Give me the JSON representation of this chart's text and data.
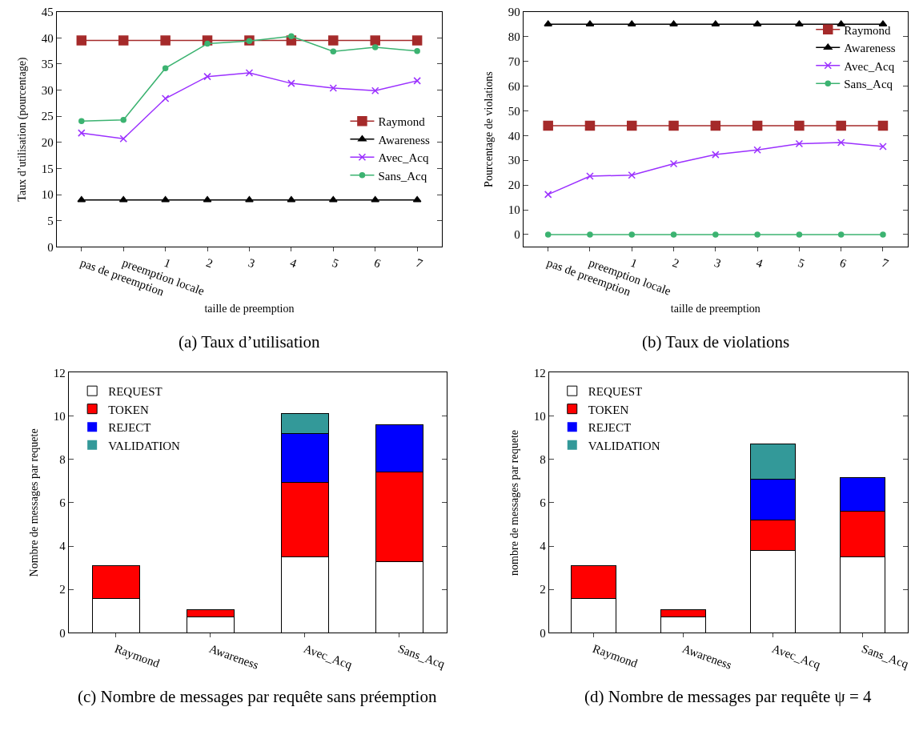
{
  "chart_data": [
    {
      "type": "line",
      "title": "(a) Taux d’utilisation",
      "xlabel": "taille de preemption",
      "ylabel": "Taux d’utilisation (pourcentage)",
      "categories": [
        "pas de preemption",
        "preemption locale",
        "1",
        "2",
        "3",
        "4",
        "5",
        "6",
        "7"
      ],
      "ylim": [
        0,
        45
      ],
      "yticks": [
        0,
        5,
        10,
        15,
        20,
        25,
        30,
        35,
        40,
        45
      ],
      "legend": "right",
      "series": [
        {
          "name": "Raymond",
          "color": "#a52a2a",
          "marker": "square",
          "values": [
            39.5,
            39.5,
            39.5,
            39.5,
            39.5,
            39.5,
            39.5,
            39.5,
            39.5
          ]
        },
        {
          "name": "Awareness",
          "color": "#000000",
          "marker": "triangle",
          "values": [
            9,
            9,
            9,
            9,
            9,
            9,
            9,
            9,
            9
          ]
        },
        {
          "name": "Avec_Acq",
          "color": "#9b30ff",
          "marker": "cross",
          "values": [
            21.8,
            20.7,
            28.4,
            32.6,
            33.3,
            31.3,
            30.4,
            29.9,
            31.8
          ]
        },
        {
          "name": "Sans_Acq",
          "color": "#3cb371",
          "marker": "circle",
          "values": [
            24.1,
            24.3,
            34.2,
            38.9,
            39.4,
            40.3,
            37.4,
            38.2,
            37.5
          ]
        }
      ]
    },
    {
      "type": "line",
      "title": "(b) Taux de violations",
      "xlabel": "taille de preemption",
      "ylabel": "Pourcentage de violations",
      "categories": [
        "pas de preemption",
        "preemption locale",
        "1",
        "2",
        "3",
        "4",
        "5",
        "6",
        "7"
      ],
      "ylim": [
        -5,
        90
      ],
      "yticks": [
        0,
        10,
        20,
        30,
        40,
        50,
        60,
        70,
        80,
        90
      ],
      "legend": "top right",
      "series": [
        {
          "name": "Raymond",
          "color": "#a52a2a",
          "marker": "square",
          "values": [
            44,
            44,
            44,
            44,
            44,
            44,
            44,
            44,
            44
          ]
        },
        {
          "name": "Awareness",
          "color": "#000000",
          "marker": "triangle",
          "values": [
            85,
            85,
            85,
            85,
            85,
            85,
            85,
            85,
            85
          ]
        },
        {
          "name": "Avec_Acq",
          "color": "#9b30ff",
          "marker": "cross",
          "values": [
            16.2,
            23.6,
            24,
            28.6,
            32.3,
            34.2,
            36.7,
            37.2,
            35.6
          ]
        },
        {
          "name": "Sans_Acq",
          "color": "#3cb371",
          "marker": "circle",
          "values": [
            0,
            0,
            0,
            0,
            0,
            0,
            0,
            0,
            0
          ]
        }
      ]
    },
    {
      "type": "bar",
      "stacked": true,
      "title": "(c) Nombre de messages par requête sans préemption",
      "ylabel": "Nombre de messages par requete",
      "categories": [
        "Raymond",
        "Awareness",
        "Avec_Acq",
        "Sans_Acq"
      ],
      "ylim": [
        0,
        12
      ],
      "yticks": [
        0,
        2,
        4,
        6,
        8,
        10,
        12
      ],
      "legend": "top left",
      "series": [
        {
          "name": "REQUEST",
          "color": "#ffffff",
          "values": [
            1.6,
            0.75,
            3.5,
            3.3
          ]
        },
        {
          "name": "TOKEN",
          "color": "#ff0000",
          "values": [
            1.5,
            0.3,
            3.45,
            4.1
          ]
        },
        {
          "name": "REJECT",
          "color": "#0000ff",
          "values": [
            0,
            0,
            2.25,
            2.2
          ]
        },
        {
          "name": "VALIDATION",
          "color": "#339999",
          "values": [
            0,
            0,
            0.9,
            0
          ]
        }
      ]
    },
    {
      "type": "bar",
      "stacked": true,
      "title": "(d) Nombre de messages par requête ψ = 4",
      "ylabel": "nombre de messages par requete",
      "categories": [
        "Raymond",
        "Awareness",
        "Avec_Acq",
        "Sans_Acq"
      ],
      "ylim": [
        0,
        12
      ],
      "yticks": [
        0,
        2,
        4,
        6,
        8,
        10,
        12
      ],
      "legend": "top left",
      "series": [
        {
          "name": "REQUEST",
          "color": "#ffffff",
          "values": [
            1.6,
            0.75,
            3.8,
            3.5
          ]
        },
        {
          "name": "TOKEN",
          "color": "#ff0000",
          "values": [
            1.5,
            0.3,
            1.4,
            2.1
          ]
        },
        {
          "name": "REJECT",
          "color": "#0000ff",
          "values": [
            0,
            0,
            1.9,
            1.55
          ]
        },
        {
          "name": "VALIDATION",
          "color": "#339999",
          "values": [
            0,
            0,
            1.6,
            0
          ]
        }
      ]
    }
  ]
}
